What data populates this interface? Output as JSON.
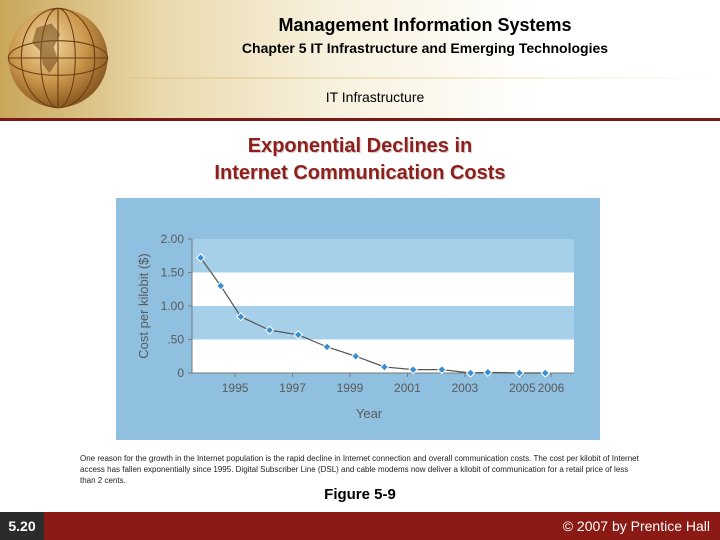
{
  "header": {
    "title": "Management Information Systems",
    "subtitle": "Chapter 5 IT Infrastructure and Emerging Technologies",
    "section": "IT Infrastructure"
  },
  "slide": {
    "title_line1": "Exponential Declines in",
    "title_line2": "Internet Communication Costs"
  },
  "chart_data": {
    "type": "line",
    "title": "",
    "xlabel": "Year",
    "ylabel": "Cost per kilobit ($)",
    "xlim": [
      1993.5,
      2006.8
    ],
    "ylim": [
      0,
      2.0
    ],
    "x_ticks": [
      1995,
      1997,
      1999,
      2001,
      2003,
      2005,
      2006
    ],
    "x_tick_labels": [
      "1995",
      "1997",
      "1999",
      "2001",
      "2003",
      "2005",
      "2006"
    ],
    "y_ticks": [
      0,
      0.5,
      1.0,
      1.5,
      2.0
    ],
    "y_tick_labels": [
      "0",
      ".50",
      "1.00",
      "1.50",
      "2.00"
    ],
    "grid": false,
    "bands": true,
    "series": [
      {
        "x": [
          1993.8,
          1994.5,
          1995.2,
          1996.2,
          1997.2,
          1998.2,
          1999.2,
          2000.2,
          2001.2,
          2002.2,
          2003.2,
          2003.8,
          2004.9,
          2005.8
        ],
        "values": [
          1.72,
          1.3,
          0.84,
          0.64,
          0.57,
          0.39,
          0.25,
          0.09,
          0.05,
          0.05,
          0.0,
          0.01,
          0.0,
          0.0
        ]
      }
    ],
    "colors": {
      "panel": "#8fc0e0",
      "band_light": "#ffffff",
      "band_dark": "#a6d0ea",
      "line": "#555555",
      "marker": "#3a8fd0",
      "marker_edge": "#ffffff",
      "text": "#5a5a5a"
    }
  },
  "caption": "One reason for the growth in the Internet population is the rapid decline in Internet connection and overall communication costs. The cost per kilobit of Internet access has fallen exponentially since 1995. Digital Subscriber Line (DSL) and cable modems now deliver a kilobit of communication for a retail price of less than 2 cents.",
  "figure_label": "Figure 5-9",
  "footer": {
    "slide_number": "5.20",
    "copyright": "© 2007 by Prentice Hall"
  }
}
